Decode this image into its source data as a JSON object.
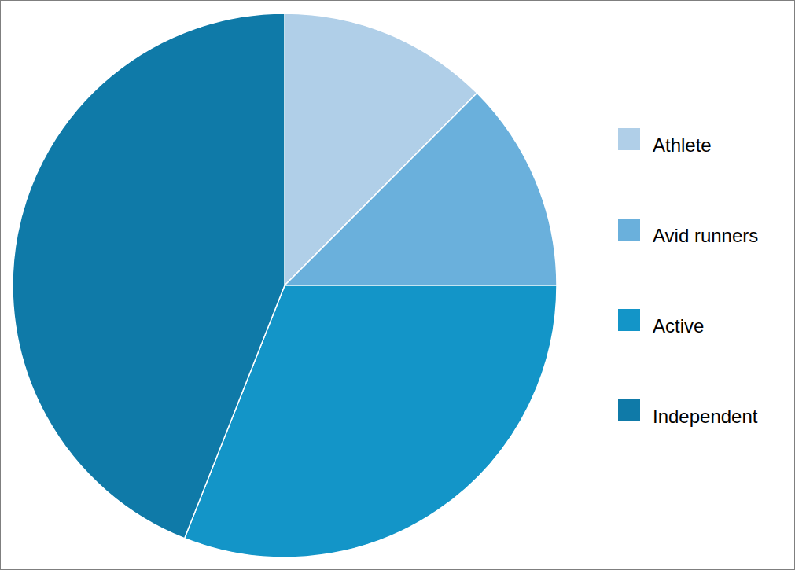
{
  "chart_data": {
    "type": "pie",
    "categories": [
      "Athlete",
      "Avid runners",
      "Active",
      "Independent"
    ],
    "values": [
      12.5,
      12.5,
      31,
      44
    ],
    "colors": [
      "#b0cfe8",
      "#6ab0dc",
      "#1395c8",
      "#0f7aa8"
    ],
    "legend": "right"
  }
}
